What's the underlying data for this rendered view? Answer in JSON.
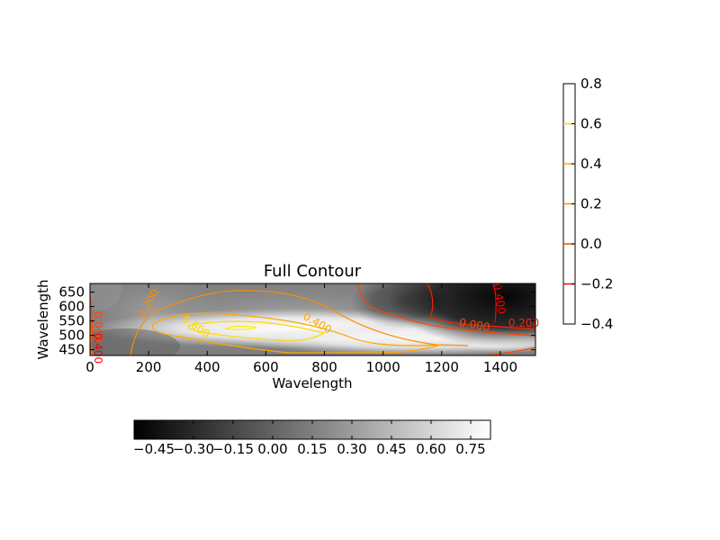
{
  "chart_data": {
    "type": "heatmap",
    "title": "Full Contour",
    "xlabel": "Wavelength",
    "ylabel": "Wavelength",
    "xlim": [
      0,
      1520
    ],
    "ylim": [
      430,
      680
    ],
    "x_ticks": [
      0,
      200,
      400,
      600,
      800,
      1000,
      1200,
      1400
    ],
    "y_ticks": [
      450,
      500,
      550,
      600,
      650
    ],
    "colormap": "gray",
    "grid": false,
    "contour_labels": [
      {
        "text": "0.200",
        "x": 210,
        "y": 605,
        "color": "#ff8c00",
        "angle": -60
      },
      {
        "text": "0.600",
        "x": 355,
        "y": 520,
        "color": "#ffd700",
        "angle": 35
      },
      {
        "text": "0.400",
        "x": 770,
        "y": 532,
        "color": "#ffa500",
        "angle": 30
      },
      {
        "text": "0.000",
        "x": 1310,
        "y": 524,
        "color": "#ff4500",
        "angle": 10
      },
      {
        "text": "0.200",
        "x": 1480,
        "y": 530,
        "color": "#ff2000",
        "angle": 0
      },
      {
        "text": "0.400",
        "x": 1385,
        "y": 625,
        "color": "#ff0000",
        "angle": 80
      },
      {
        "text": "0.000",
        "x": 15,
        "y": 530,
        "color": "#ff4500",
        "angle": 90
      },
      {
        "text": "0.400",
        "x": 15,
        "y": 455,
        "color": "#ff0000",
        "angle": 90
      }
    ],
    "colorbar_horizontal": {
      "ticks": [
        "−0.45",
        "−0.30",
        "−0.15",
        "0.00",
        "0.15",
        "0.30",
        "0.45",
        "0.60",
        "0.75"
      ],
      "range": [
        -0.525,
        0.825
      ]
    },
    "colorbar_vertical": {
      "ticks": [
        "0.8",
        "0.6",
        "0.4",
        "0.2",
        "0.0",
        "−0.2",
        "−0.4"
      ],
      "levels": [
        {
          "value": 0.6,
          "color": "#ffd700"
        },
        {
          "value": 0.4,
          "color": "#ffa500"
        },
        {
          "value": 0.2,
          "color": "#ff8c00"
        },
        {
          "value": 0.0,
          "color": "#ff4500"
        },
        {
          "value": -0.2,
          "color": "#ff0000"
        }
      ],
      "range": [
        -0.4,
        0.8
      ]
    }
  }
}
